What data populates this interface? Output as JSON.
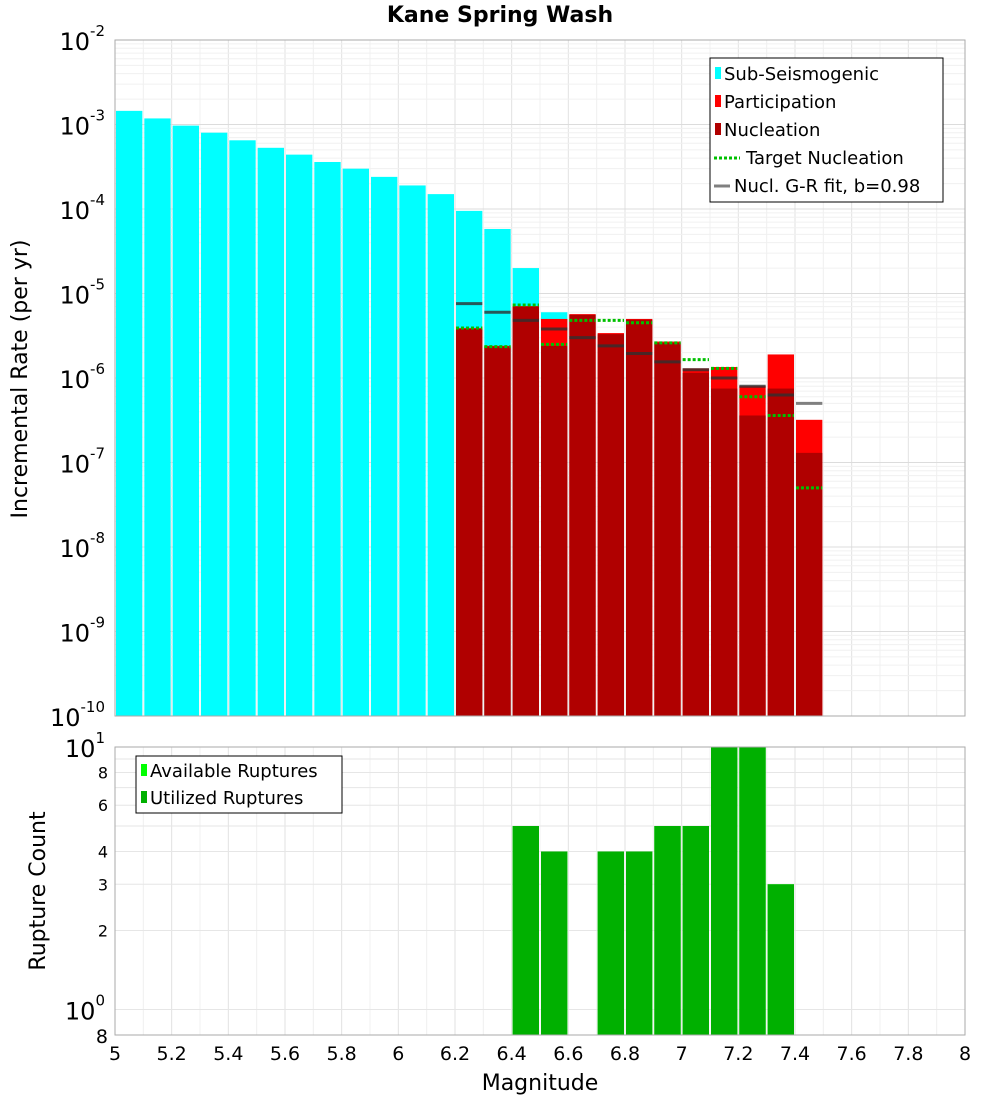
{
  "chart_data": [
    {
      "type": "bar",
      "title": "Kane Spring Wash",
      "xlabel": "",
      "ylabel": "Incremental Rate (per yr)",
      "xlim": [
        5,
        8
      ],
      "ylim": [
        1e-10,
        0.01
      ],
      "yscale": "log",
      "grid": true,
      "legend_position": "top-right",
      "y_tick_labels": [
        {
          "base": "10",
          "exp": "-10",
          "value": 1e-10
        },
        {
          "base": "10",
          "exp": "-9",
          "value": 1e-09
        },
        {
          "base": "10",
          "exp": "-8",
          "value": 1e-08
        },
        {
          "base": "10",
          "exp": "-7",
          "value": 1e-07
        },
        {
          "base": "10",
          "exp": "-6",
          "value": 1e-06
        },
        {
          "base": "10",
          "exp": "-5",
          "value": 1e-05
        },
        {
          "base": "10",
          "exp": "-4",
          "value": 0.0001
        },
        {
          "base": "10",
          "exp": "-3",
          "value": 0.001
        },
        {
          "base": "10",
          "exp": "-2",
          "value": 0.01
        }
      ],
      "series": [
        {
          "name": "Sub-Seismogenic",
          "color": "#00FFFF",
          "x": [
            5.05,
            5.15,
            5.25,
            5.35,
            5.45,
            5.55,
            5.65,
            5.75,
            5.85,
            5.95,
            6.05,
            6.15,
            6.25,
            6.35,
            6.45,
            6.55
          ],
          "values": [
            0.00145,
            0.00118,
            0.00097,
            0.0008,
            0.00065,
            0.00053,
            0.00044,
            0.00036,
            0.0003,
            0.00024,
            0.00019,
            0.00015,
            9.5e-05,
            5.8e-05,
            2e-05,
            6e-06
          ]
        },
        {
          "name": "Participation",
          "color": "#FF0000",
          "x": [
            6.25,
            6.35,
            6.45,
            6.55,
            6.65,
            6.75,
            6.85,
            6.95,
            7.05,
            7.15,
            7.25,
            7.35,
            7.45
          ],
          "values": [
            3.9e-06,
            2.4e-06,
            7.1e-06,
            5e-06,
            5.7e-06,
            3.4e-06,
            5e-06,
            2.7e-06,
            1.3e-06,
            1.35e-06,
            8e-07,
            1.9e-06,
            3.2e-07
          ]
        },
        {
          "name": "Nucleation",
          "color": "#B00000",
          "x": [
            6.25,
            6.35,
            6.45,
            6.55,
            6.65,
            6.75,
            6.85,
            6.95,
            7.05,
            7.15,
            7.25,
            7.35,
            7.45
          ],
          "values": [
            3.8e-06,
            2.35e-06,
            7e-06,
            2.4e-06,
            5.6e-06,
            3.3e-06,
            4.9e-06,
            2.6e-06,
            1.15e-06,
            7.5e-07,
            3.6e-07,
            7.5e-07,
            1.3e-07
          ]
        },
        {
          "name": "Target Nucleation",
          "color": "#00C000",
          "style": "dotted",
          "x": [
            6.25,
            6.35,
            6.45,
            6.55,
            6.65,
            6.75,
            6.85,
            6.95,
            7.05,
            7.15,
            7.25,
            7.35,
            7.45
          ],
          "values": [
            3.9e-06,
            2.35e-06,
            7.3e-06,
            2.5e-06,
            4.8e-06,
            4.8e-06,
            4.5e-06,
            2.6e-06,
            1.65e-06,
            1.3e-06,
            6e-07,
            3.6e-07,
            5e-08
          ]
        },
        {
          "name": "Nucl. G-R fit, b=0.98",
          "color": "#808080",
          "style": "solid",
          "x": [
            6.25,
            6.35,
            6.45,
            6.55,
            6.65,
            6.75,
            6.85,
            6.95,
            7.05,
            7.15,
            7.25,
            7.35,
            7.45
          ],
          "values": [
            7.6e-06,
            6e-06,
            4.8e-06,
            3.8e-06,
            3e-06,
            2.4e-06,
            1.95e-06,
            1.55e-06,
            1.25e-06,
            1e-06,
            8e-07,
            6.3e-07,
            5e-07
          ]
        }
      ]
    },
    {
      "type": "bar",
      "title": "",
      "xlabel": "Magnitude",
      "ylabel": "Rupture Count",
      "xlim": [
        5,
        8
      ],
      "ylim": [
        0.8,
        10
      ],
      "yscale": "log",
      "grid": true,
      "legend_position": "top-left",
      "x_ticks": [
        "5",
        "5.2",
        "5.4",
        "5.6",
        "5.8",
        "6",
        "6.2",
        "6.4",
        "6.6",
        "6.8",
        "7",
        "7.2",
        "7.4",
        "7.6",
        "7.8",
        "8"
      ],
      "y_tick_labels": [
        {
          "text": "2",
          "value": 2
        },
        {
          "text": "3",
          "value": 3
        },
        {
          "text": "4",
          "value": 4
        },
        {
          "text": "6",
          "value": 6
        },
        {
          "text": "8",
          "value": 8
        }
      ],
      "y_major_labels": [
        {
          "base": "10",
          "exp": "0",
          "value": 1
        },
        {
          "base": "10",
          "exp": "1",
          "value": 10
        }
      ],
      "y_bottom_label": "8",
      "series": [
        {
          "name": "Available Ruptures",
          "color": "#00FF00",
          "x": [
            6.45,
            6.55,
            6.75,
            6.85,
            6.95,
            7.05,
            7.15,
            7.25,
            7.35
          ],
          "values": [
            5,
            4,
            4,
            4,
            5,
            5,
            10,
            10,
            3
          ]
        },
        {
          "name": "Utilized Ruptures",
          "color": "#00B000",
          "x": [
            6.45,
            6.55,
            6.75,
            6.85,
            6.95,
            7.05,
            7.15,
            7.25,
            7.35
          ],
          "values": [
            5,
            4,
            4,
            4,
            5,
            5,
            10,
            10,
            3
          ]
        }
      ]
    }
  ]
}
